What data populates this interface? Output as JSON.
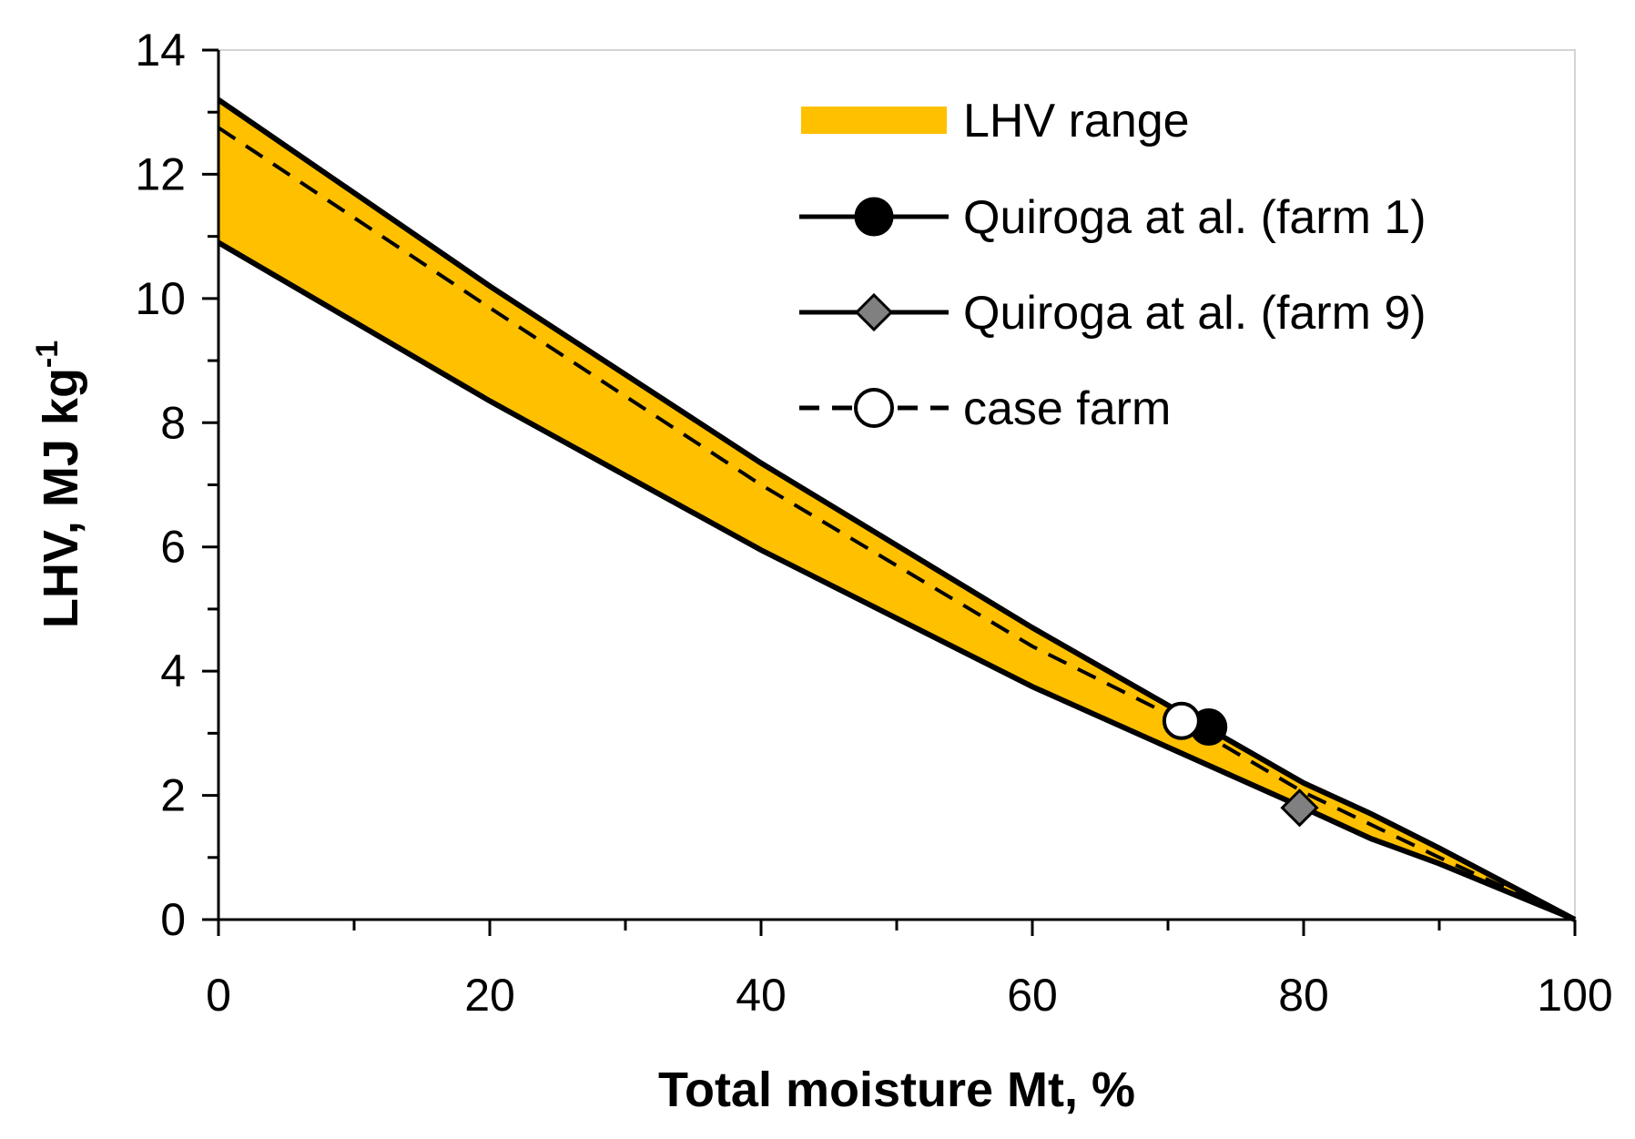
{
  "chart_data": {
    "type": "line",
    "xlabel": "Total moisture Mt, %",
    "ylabel_main": "LHV, MJ kg",
    "ylabel_sup": "-1",
    "xlim": [
      0,
      100
    ],
    "ylim": [
      0,
      14
    ],
    "x_ticks": [
      0,
      20,
      40,
      60,
      80,
      100
    ],
    "y_ticks": [
      0,
      2,
      4,
      6,
      8,
      10,
      12,
      14
    ],
    "x_minor_ticks": [
      10,
      30,
      50,
      70,
      90
    ],
    "y_minor_ticks": [
      1,
      3,
      5,
      7,
      9,
      11,
      13
    ],
    "grid": false,
    "legend_position": "top-right",
    "colors": {
      "range_fill": "#FFC000",
      "line": "#000000",
      "farm1_marker": "#000000",
      "farm9_marker": "#808080",
      "case_marker": "#FFFFFF"
    },
    "range_band": {
      "name": "LHV range",
      "x": [
        0,
        20,
        40,
        60,
        80,
        85,
        90,
        100
      ],
      "upper": [
        13.2,
        10.2,
        7.35,
        4.7,
        2.2,
        1.7,
        1.15,
        0
      ],
      "lower": [
        10.9,
        8.35,
        5.95,
        3.75,
        1.8,
        1.3,
        0.9,
        0
      ]
    },
    "series": [
      {
        "name": "Quiroga at al. (farm 1)",
        "marker": "circle-filled",
        "points": [
          {
            "x": 73,
            "y": 3.1
          }
        ]
      },
      {
        "name": "Quiroga at al. (farm 9)",
        "marker": "diamond-gray",
        "points": [
          {
            "x": 79.7,
            "y": 1.8
          }
        ]
      },
      {
        "name": "case farm",
        "marker": "circle-open",
        "line_style": "dashed",
        "x": [
          0,
          20,
          40,
          60,
          71,
          80,
          90,
          100
        ],
        "y": [
          12.75,
          9.85,
          7.0,
          4.4,
          3.2,
          2.05,
          1.0,
          0
        ],
        "points": [
          {
            "x": 71,
            "y": 3.2
          }
        ]
      }
    ]
  }
}
